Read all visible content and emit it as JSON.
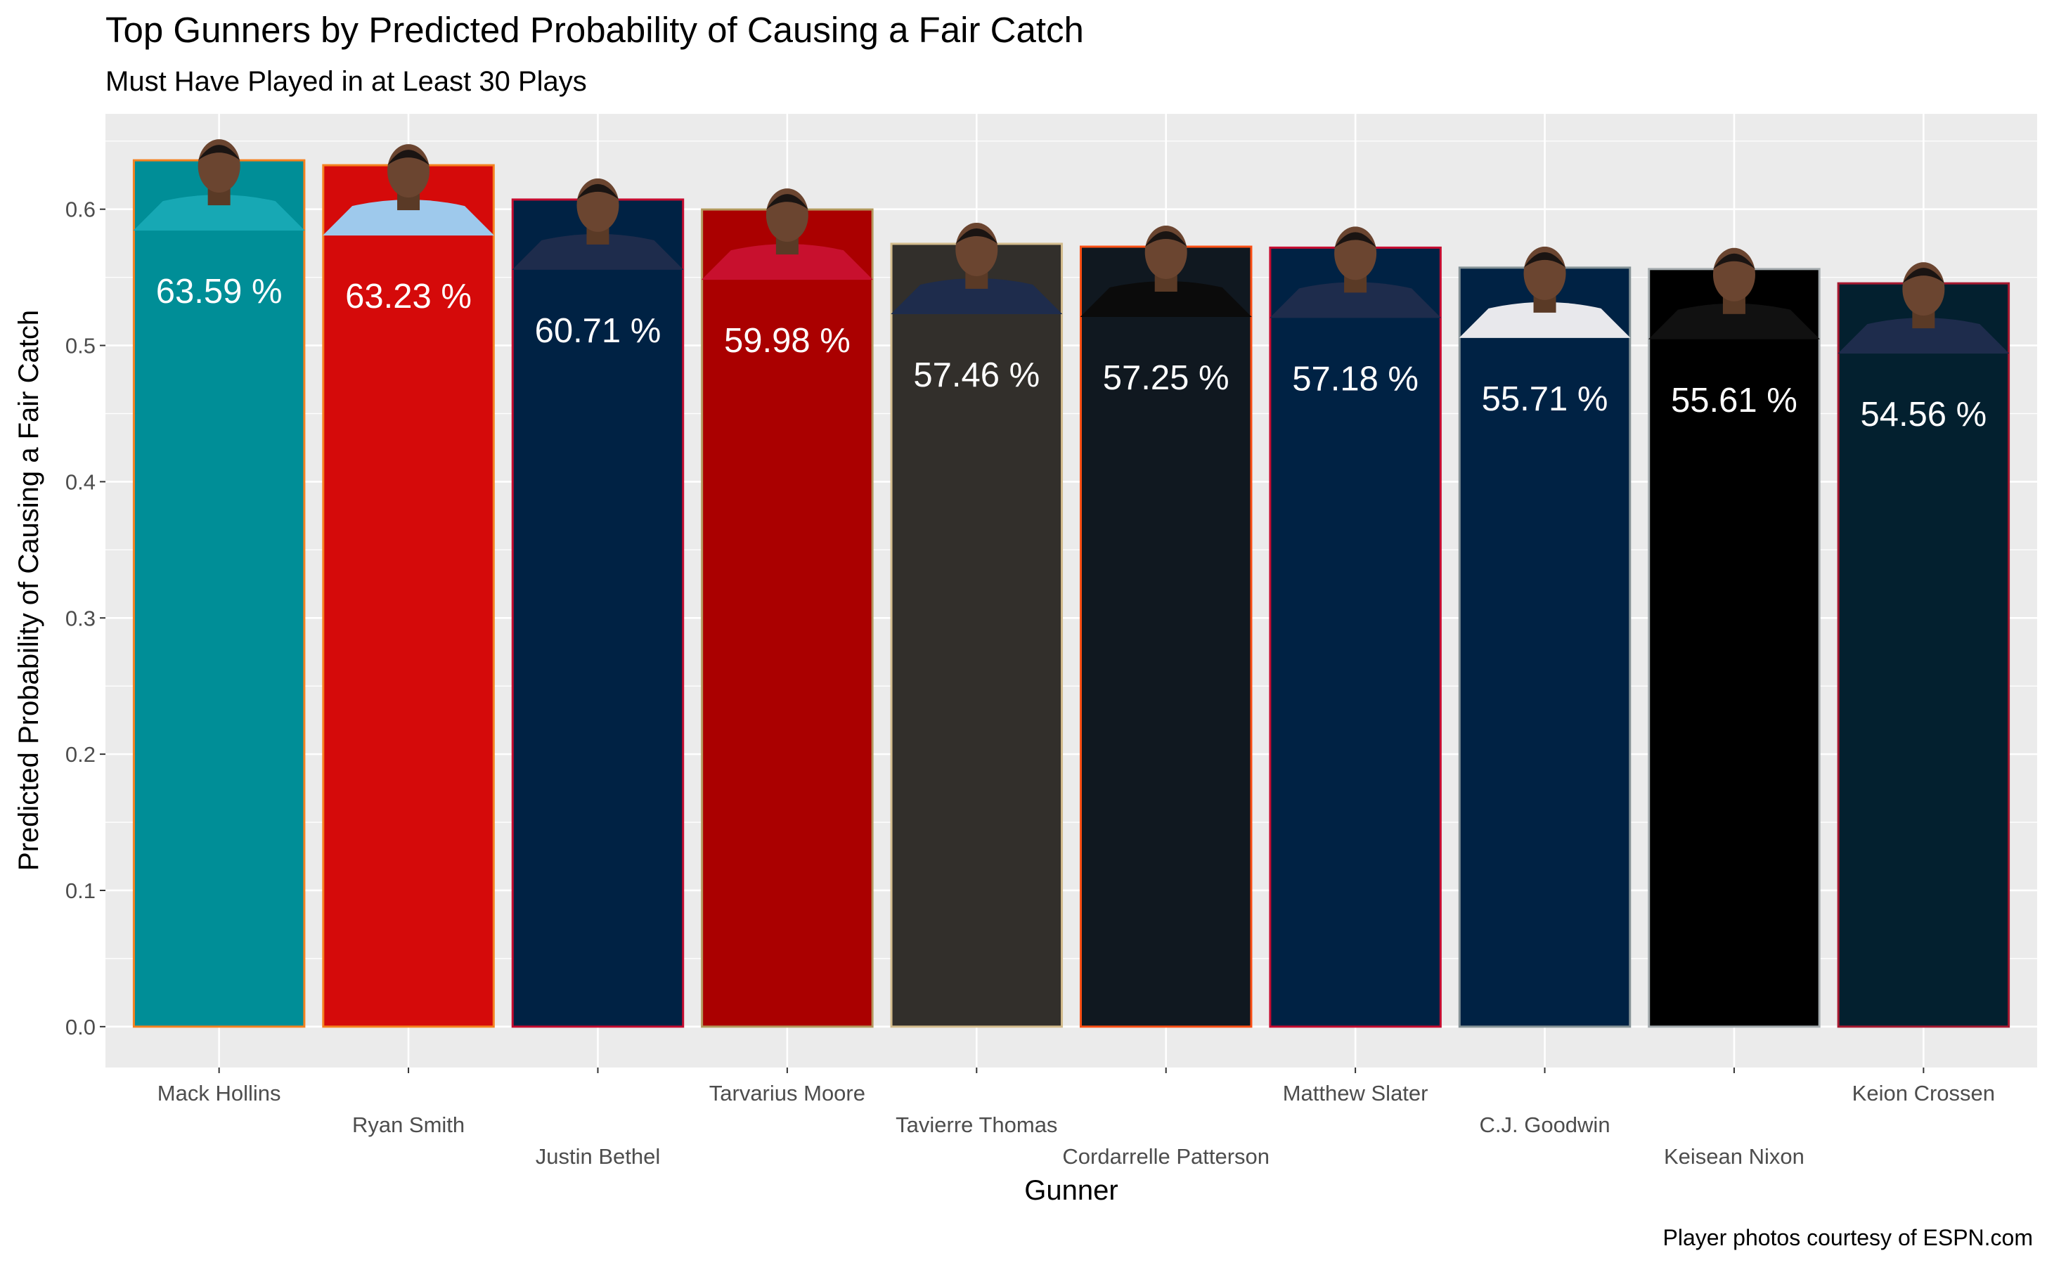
{
  "chart_data": {
    "type": "bar",
    "title": "Top Gunners by Predicted Probability of Causing a Fair Catch",
    "subtitle": "Must Have Played in at Least 30 Plays",
    "xlabel": "Gunner",
    "ylabel": "Predicted Probability of Causing a Fair Catch",
    "caption": "Player photos courtesy of ESPN.com",
    "ylim": [
      -0.03,
      0.67
    ],
    "yticks": [
      "0.0",
      "0.1",
      "0.2",
      "0.3",
      "0.4",
      "0.5",
      "0.6"
    ],
    "grid": true,
    "categories": [
      "Mack Hollins",
      "Ryan Smith",
      "Justin Bethel",
      "Tarvarius Moore",
      "Tavierre Thomas",
      "Cordarrelle Patterson",
      "Matthew Slater",
      "C.J. Goodwin",
      "Keisean Nixon",
      "Keion Crossen"
    ],
    "values": [
      0.6359,
      0.6323,
      0.6071,
      0.5998,
      0.5746,
      0.5725,
      0.5718,
      0.5571,
      0.5561,
      0.5456
    ],
    "labels": [
      "63.59 %",
      "63.23 %",
      "60.71 %",
      "59.98 %",
      "57.46 %",
      "57.25 %",
      "57.18 %",
      "55.71 %",
      "55.61 %",
      "54.56 %"
    ],
    "fill_colors": [
      "#008E97",
      "#D50A0A",
      "#002244",
      "#AA0000",
      "#322F2B",
      "#101820",
      "#002244",
      "#002244",
      "#000000",
      "#03202F"
    ],
    "outline_colors": [
      "#F58220",
      "#F58220",
      "#C60C30",
      "#B3995D",
      "#D3BC8D",
      "#FB4F14",
      "#C60C30",
      "#869397",
      "#A5ACAF",
      "#A71930"
    ],
    "jersey_colors": [
      "#17a8b4",
      "#9ec9ec",
      "#1e2c4c",
      "#c8102e",
      "#1e2c4c",
      "#0b0b0b",
      "#1e2c4c",
      "#e8e8ec",
      "#111111",
      "#1e2c4c"
    ]
  }
}
